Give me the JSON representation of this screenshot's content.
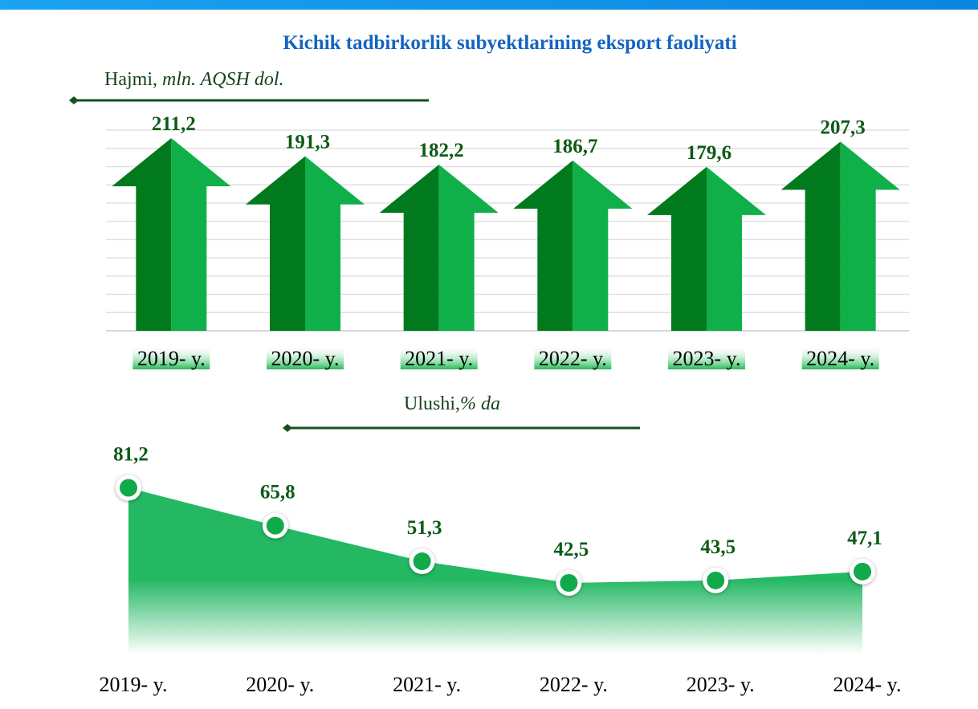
{
  "colors": {
    "arrow_dark": "#007a1c",
    "arrow_light": "#0fb04a",
    "area": "#24b863",
    "title": "#1464c0",
    "value": "#0f5a16",
    "topbar": "#0b8be0"
  },
  "title": "Kichik tadbirkorlik subyektlarining eksport faoliyati",
  "chart_data": [
    {
      "type": "bar",
      "title": "Hajmi, mln. AQSH dol.",
      "title_main": "Hajmi,",
      "title_unit": "mln. AQSH dol.",
      "categories": [
        "2019- y.",
        "2020- y.",
        "2021- y.",
        "2022- y.",
        "2023- y.",
        "2024- y."
      ],
      "values": [
        211.2,
        191.3,
        182.2,
        186.7,
        179.6,
        207.3
      ],
      "value_labels": [
        "211,2",
        "191,3",
        "182,2",
        "186,7",
        "179,6",
        "207,3"
      ],
      "ylim": [
        0,
        220
      ],
      "grid": true
    },
    {
      "type": "area",
      "title": "Ulushi, % da",
      "title_main": "Ulushi,",
      "title_unit": "% da",
      "categories": [
        "2019- y.",
        "2020- y.",
        "2021- y.",
        "2022- y.",
        "2023- y.",
        "2024- y."
      ],
      "values": [
        81.2,
        65.8,
        51.3,
        42.5,
        43.5,
        47.1
      ],
      "value_labels": [
        "81,2",
        "65,8",
        "51,3",
        "42,5",
        "43,5",
        "47,1"
      ],
      "ylim": [
        0,
        95
      ],
      "grid": false
    }
  ]
}
